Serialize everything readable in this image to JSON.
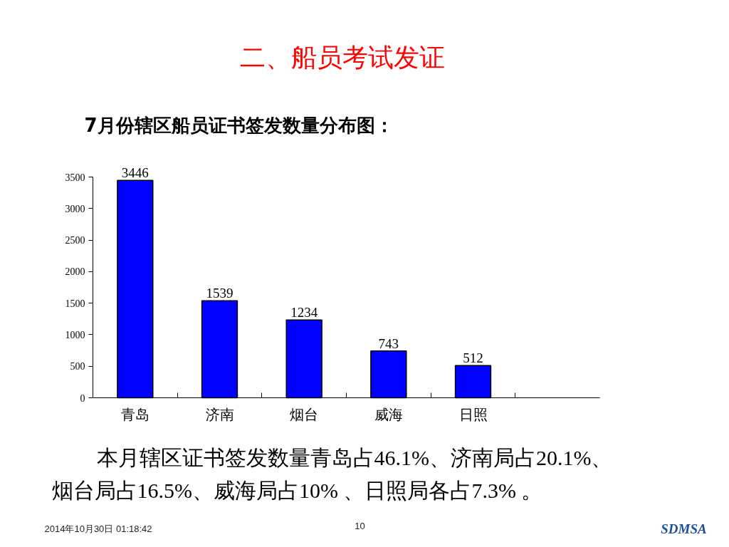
{
  "chart_data": {
    "type": "bar",
    "title": "二、船员考试发证",
    "subtitle": "7月份辖区船员证书签发数量分布图：",
    "categories": [
      "青岛",
      "济南",
      "烟台",
      "威海",
      "日照",
      null
    ],
    "values": [
      3446,
      1539,
      1234,
      743,
      512,
      null
    ],
    "color": "#0000ff",
    "ylim": [
      0,
      3500
    ],
    "yticks": [
      0,
      500,
      1000,
      1500,
      2000,
      2500,
      3000,
      3500
    ],
    "grid": false,
    "data_labels": true,
    "annotations": [
      "本月辖区证书签发数量青岛占46.1%、济南局占20.1%、烟台局占16.5%、威海局占10% 、日照局各占7.3% 。",
      "2014年10月30日  01:18:42",
      "10",
      "SDMSA"
    ]
  }
}
